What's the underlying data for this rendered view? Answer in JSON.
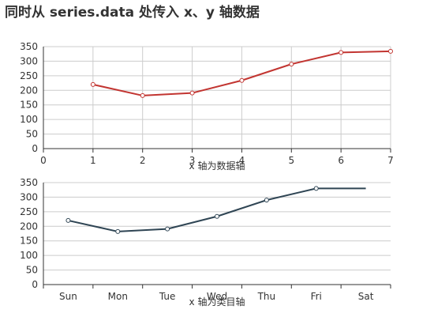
{
  "title": "同时从 series.data 处传入 x、y 轴数据",
  "colors": {
    "series_top": "#c23531",
    "series_bottom": "#2f4554"
  },
  "chart_data": [
    {
      "type": "line",
      "xlabel": "x 轴为数据轴",
      "ylabel": "",
      "x_axis": "value",
      "xlim": [
        0,
        7
      ],
      "ylim": [
        0,
        350
      ],
      "x_ticks": [
        0,
        1,
        2,
        3,
        4,
        5,
        6,
        7
      ],
      "y_ticks": [
        0,
        50,
        100,
        150,
        200,
        250,
        300,
        350
      ],
      "grid": true,
      "series": [
        {
          "x": [
            1,
            2,
            3,
            4,
            5,
            6,
            7
          ],
          "values": [
            220,
            182,
            191,
            234,
            290,
            330,
            334
          ],
          "markers": [
            true,
            true,
            true,
            true,
            true,
            true,
            true
          ]
        }
      ]
    },
    {
      "type": "line",
      "xlabel": "x 轴为类目轴",
      "ylabel": "",
      "x_axis": "category",
      "categories": [
        "Sun",
        "Mon",
        "Tue",
        "Wed",
        "Thu",
        "Fri",
        "Sat"
      ],
      "ylim": [
        0,
        350
      ],
      "y_ticks": [
        0,
        50,
        100,
        150,
        200,
        250,
        300,
        350
      ],
      "grid": true,
      "series": [
        {
          "values": [
            220,
            182,
            191,
            234,
            290,
            330,
            330
          ],
          "markers": [
            true,
            true,
            true,
            true,
            true,
            true,
            false
          ]
        }
      ]
    }
  ]
}
